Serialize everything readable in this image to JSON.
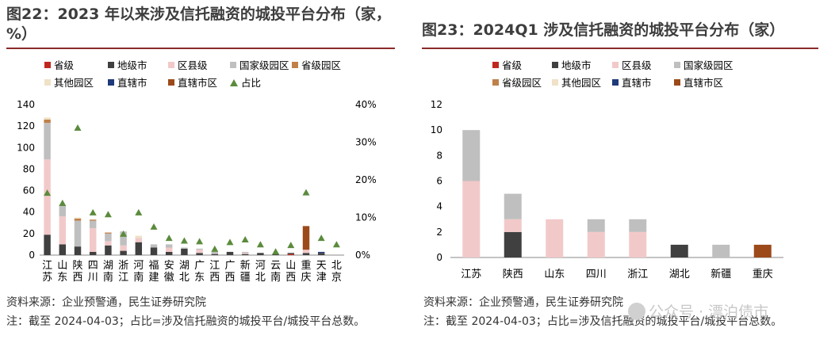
{
  "left": {
    "title": "图22：2023 年以来涉及信托融资的城投平台分布（家，%）",
    "source": "资料来源：企业预警通，民生证券研究院",
    "note": "注：截至 2024-04-03；占比=涉及信托融资的城投平台/城投平台总数。"
  },
  "right": {
    "title": "图23：2024Q1 涉及信托融资的城投平台分布（家）",
    "source": "资料来源：企业预警通，民生证券研究院",
    "note": "注：截至 2024-04-03；占比=涉及信托融资的城投平台/城投平台总数。"
  },
  "watermark": "公众号 · 漂泊债市",
  "colors": {
    "省级": "#c0281e",
    "地级市": "#404040",
    "区县级": "#f2c9c9",
    "国家级园区": "#bfbfbf",
    "省级园区": "#c0804a",
    "其他园区": "#efe2c6",
    "直辖市": "#1f3a7a",
    "直辖市区": "#9c4a1a",
    "占比": "#5b8b3c"
  },
  "chart_data": [
    {
      "type": "bar",
      "stacked": true,
      "categories": [
        "江苏",
        "山东",
        "陕西",
        "四川",
        "湖南",
        "浙江",
        "河南",
        "福建",
        "安徽",
        "湖北",
        "广东",
        "江西",
        "广西",
        "新疆",
        "河北",
        "云南",
        "山西",
        "重庆",
        "天津",
        "北京"
      ],
      "legend": [
        "省级",
        "地级市",
        "区县级",
        "国家级园区",
        "省级园区",
        "其他园区",
        "直辖市",
        "直辖市区",
        "占比"
      ],
      "series": [
        {
          "name": "省级",
          "values": [
            0,
            0,
            0,
            0,
            0,
            0,
            0,
            0,
            0,
            0,
            0,
            0,
            0,
            0,
            0,
            0,
            1,
            0,
            0,
            0
          ]
        },
        {
          "name": "地级市",
          "values": [
            19,
            10,
            8,
            3,
            9,
            4,
            12,
            7,
            3,
            6,
            2,
            1,
            3,
            1,
            2,
            1,
            1,
            2,
            2,
            0
          ]
        },
        {
          "name": "区县级",
          "values": [
            70,
            26,
            0,
            22,
            4,
            5,
            4,
            0,
            4,
            0,
            3,
            0,
            0,
            1,
            0,
            0,
            0,
            3,
            0,
            0
          ]
        },
        {
          "name": "国家级园区",
          "values": [
            34,
            10,
            24,
            7,
            7,
            13,
            0,
            3,
            3,
            1,
            1,
            2,
            0,
            1,
            0,
            0,
            0,
            0,
            0,
            0
          ]
        },
        {
          "name": "省级园区",
          "values": [
            3,
            0,
            2,
            1,
            1,
            0,
            0,
            0,
            0,
            0,
            0,
            0,
            0,
            0,
            0,
            0,
            0,
            0,
            0,
            0
          ]
        },
        {
          "name": "其他园区",
          "values": [
            2,
            0,
            1,
            0,
            0,
            0,
            2,
            0,
            0,
            0,
            0,
            0,
            0,
            0,
            0,
            0,
            0,
            0,
            0,
            0
          ]
        },
        {
          "name": "直辖市",
          "values": [
            0,
            0,
            0,
            0,
            0,
            0,
            0,
            0,
            0,
            0,
            0,
            0,
            0,
            0,
            0,
            0,
            0,
            0,
            1,
            0
          ]
        },
        {
          "name": "直辖市区",
          "values": [
            0,
            0,
            0,
            0,
            0,
            0,
            0,
            0,
            0,
            0,
            0,
            0,
            0,
            0,
            0,
            0,
            0,
            22,
            0,
            0
          ]
        }
      ],
      "secondary_series": {
        "name": "占比",
        "type": "scatter",
        "marker": "triangle",
        "values": [
          16.5,
          13.8,
          33.8,
          11.3,
          10.8,
          5.6,
          11.3,
          7.5,
          4.5,
          3.8,
          3.6,
          1.6,
          3.4,
          4.1,
          2.8,
          0.9,
          2.6,
          16.6,
          4.5,
          2.8
        ]
      },
      "y_ticks": [
        0,
        20,
        40,
        60,
        80,
        100,
        120,
        140
      ],
      "ylim": [
        0,
        140
      ],
      "y2_ticks": [
        "0%",
        "10%",
        "20%",
        "30%",
        "40%"
      ],
      "y2lim": [
        0,
        40
      ]
    },
    {
      "type": "bar",
      "stacked": true,
      "categories": [
        "江苏",
        "陕西",
        "山东",
        "四川",
        "浙江",
        "湖北",
        "新疆",
        "重庆"
      ],
      "legend": [
        "省级",
        "地级市",
        "区县级",
        "国家级园区",
        "省级园区",
        "其他园区",
        "直辖市",
        "直辖市区"
      ],
      "series": [
        {
          "name": "地级市",
          "values": [
            0,
            2,
            0,
            0,
            0,
            1,
            0,
            0
          ]
        },
        {
          "name": "区县级",
          "values": [
            6,
            1,
            3,
            2,
            2,
            0,
            0,
            0
          ]
        },
        {
          "name": "国家级园区",
          "values": [
            4,
            2,
            0,
            1,
            1,
            0,
            1,
            0
          ]
        },
        {
          "name": "直辖市区",
          "values": [
            0,
            0,
            0,
            0,
            0,
            0,
            0,
            1
          ]
        }
      ],
      "y_ticks": [
        0,
        2,
        4,
        6,
        8,
        10,
        12
      ],
      "ylim": [
        0,
        12
      ]
    }
  ]
}
